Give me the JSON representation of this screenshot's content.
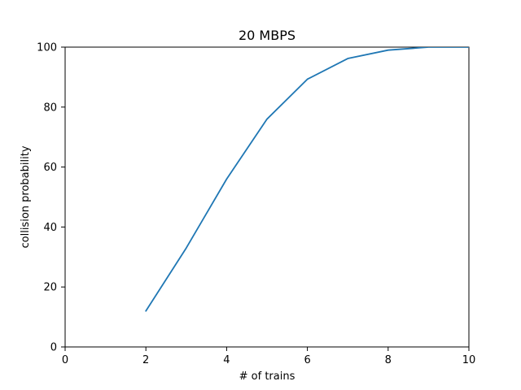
{
  "chart_data": {
    "type": "line",
    "title": "20 MBPS",
    "xlabel": "# of trains",
    "ylabel": "collision probability",
    "xlim": [
      0,
      10
    ],
    "ylim": [
      0,
      100
    ],
    "x_ticks": [
      "0",
      "2",
      "4",
      "6",
      "8",
      "10"
    ],
    "y_ticks": [
      "0",
      "20",
      "40",
      "60",
      "80",
      "100"
    ],
    "grid": false,
    "series": [
      {
        "color": "#1f77b4",
        "x": [
          2,
          3,
          4,
          5,
          6,
          7,
          8,
          9,
          10
        ],
        "y": [
          12,
          33,
          56,
          76,
          89.3,
          96.2,
          99,
          100,
          100
        ]
      }
    ]
  }
}
